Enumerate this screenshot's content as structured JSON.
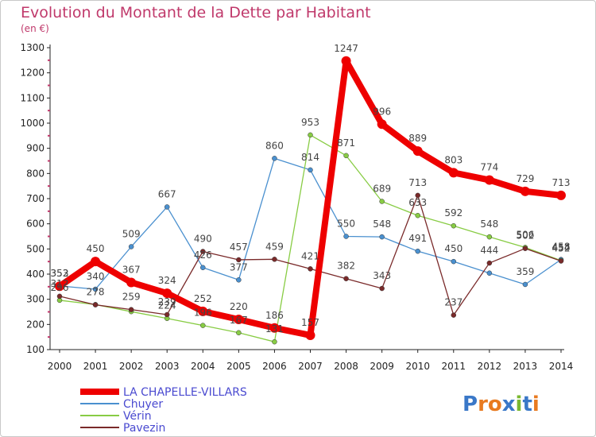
{
  "chart_data": {
    "type": "line",
    "title": "Evolution du Montant de la Dette par Habitant",
    "subtitle": "(en €)",
    "xlabel": "",
    "ylabel": "",
    "ylim": [
      100,
      1300
    ],
    "yticks": [
      100,
      200,
      300,
      400,
      500,
      600,
      700,
      800,
      900,
      1000,
      1100,
      1200,
      1300
    ],
    "x": [
      "2000",
      "2001",
      "2002",
      "2003",
      "2004",
      "2005",
      "2006",
      "2007",
      "2008",
      "2009",
      "2010",
      "2011",
      "2012",
      "2013",
      "2014"
    ],
    "grid": false,
    "legend_position": "bottom-left",
    "series": [
      {
        "name": "LA CHAPELLE-VILLARS",
        "color": "#ee0000",
        "width": 8,
        "marker": 6,
        "values": [
          352,
          450,
          367,
          324,
          252,
          220,
          186,
          157,
          1247,
          996,
          889,
          803,
          774,
          729,
          713
        ]
      },
      {
        "name": "Chuyer",
        "color": "#4a90cf",
        "width": 1.3,
        "marker": 3,
        "values": [
          353,
          340,
          509,
          667,
          426,
          377,
          860,
          814,
          550,
          548,
          491,
          450,
          404,
          359,
          458
        ]
      },
      {
        "name": "Vérin",
        "color": "#88cc44",
        "width": 1.3,
        "marker": 3,
        "values": [
          296,
          279,
          251,
          224,
          196,
          167,
          131,
          953,
          871,
          689,
          633,
          592,
          548,
          506,
          454
        ]
      },
      {
        "name": "Pavezin",
        "color": "#7a2a2a",
        "width": 1.3,
        "marker": 3,
        "values": [
          312,
          278,
          259,
          239,
          490,
          457,
          459,
          421,
          382,
          343,
          713,
          237,
          444,
          502,
          452
        ]
      }
    ],
    "data_labels": [
      {
        "series": 0,
        "i": 0,
        "text": "352",
        "dx": 0,
        "dy": -12
      },
      {
        "series": 0,
        "i": 1,
        "text": "450",
        "dx": 0,
        "dy": -12
      },
      {
        "series": 0,
        "i": 2,
        "text": "367",
        "dx": 0,
        "dy": -12
      },
      {
        "series": 0,
        "i": 3,
        "text": "324",
        "dx": 0,
        "dy": -12
      },
      {
        "series": 0,
        "i": 4,
        "text": "252",
        "dx": 0,
        "dy": -12
      },
      {
        "series": 0,
        "i": 5,
        "text": "220",
        "dx": 0,
        "dy": -12
      },
      {
        "series": 0,
        "i": 6,
        "text": "186",
        "dx": 0,
        "dy": -12
      },
      {
        "series": 0,
        "i": 7,
        "text": "157",
        "dx": 0,
        "dy": -12
      },
      {
        "series": 0,
        "i": 8,
        "text": "1247",
        "dx": 0,
        "dy": -12
      },
      {
        "series": 0,
        "i": 9,
        "text": "996",
        "dx": 0,
        "dy": -12
      },
      {
        "series": 0,
        "i": 10,
        "text": "889",
        "dx": 0,
        "dy": -12
      },
      {
        "series": 0,
        "i": 11,
        "text": "803",
        "dx": 0,
        "dy": -12
      },
      {
        "series": 0,
        "i": 12,
        "text": "774",
        "dx": 0,
        "dy": -12
      },
      {
        "series": 0,
        "i": 13,
        "text": "729",
        "dx": 0,
        "dy": -12
      },
      {
        "series": 0,
        "i": 14,
        "text": "713",
        "dx": 0,
        "dy": -12
      },
      {
        "series": 1,
        "i": 0,
        "text": "353",
        "dx": 0,
        "dy": -12
      },
      {
        "series": 1,
        "i": 1,
        "text": "340",
        "dx": 0,
        "dy": -12
      },
      {
        "series": 1,
        "i": 2,
        "text": "509",
        "dx": 0,
        "dy": -12
      },
      {
        "series": 1,
        "i": 3,
        "text": "667",
        "dx": 0,
        "dy": -12
      },
      {
        "series": 1,
        "i": 4,
        "text": "426",
        "dx": 0,
        "dy": -12
      },
      {
        "series": 1,
        "i": 5,
        "text": "377",
        "dx": 0,
        "dy": -12
      },
      {
        "series": 1,
        "i": 6,
        "text": "860",
        "dx": 0,
        "dy": -12
      },
      {
        "series": 1,
        "i": 7,
        "text": "814",
        "dx": 0,
        "dy": -12
      },
      {
        "series": 1,
        "i": 8,
        "text": "550",
        "dx": 0,
        "dy": -12
      },
      {
        "series": 1,
        "i": 9,
        "text": "548",
        "dx": 0,
        "dy": -12
      },
      {
        "series": 1,
        "i": 10,
        "text": "491",
        "dx": 0,
        "dy": -12
      },
      {
        "series": 1,
        "i": 11,
        "text": "450",
        "dx": 0,
        "dy": -12
      },
      {
        "series": 1,
        "i": 13,
        "text": "359",
        "dx": 0,
        "dy": -12
      },
      {
        "series": 1,
        "i": 14,
        "text": "458",
        "dx": 0,
        "dy": -12
      },
      {
        "series": 2,
        "i": 0,
        "text": "296",
        "dx": 0,
        "dy": -12
      },
      {
        "series": 2,
        "i": 3,
        "text": "224",
        "dx": 0,
        "dy": -12
      },
      {
        "series": 2,
        "i": 4,
        "text": "196",
        "dx": 0,
        "dy": -12
      },
      {
        "series": 2,
        "i": 5,
        "text": "167",
        "dx": 0,
        "dy": -12
      },
      {
        "series": 2,
        "i": 6,
        "text": "131",
        "dx": 0,
        "dy": -12
      },
      {
        "series": 2,
        "i": 7,
        "text": "953",
        "dx": 0,
        "dy": -12
      },
      {
        "series": 2,
        "i": 8,
        "text": "871",
        "dx": 0,
        "dy": -12
      },
      {
        "series": 2,
        "i": 9,
        "text": "689",
        "dx": 0,
        "dy": -12
      },
      {
        "series": 2,
        "i": 10,
        "text": "633",
        "dx": 0,
        "dy": -12
      },
      {
        "series": 2,
        "i": 11,
        "text": "592",
        "dx": 0,
        "dy": -12
      },
      {
        "series": 2,
        "i": 12,
        "text": "548",
        "dx": 0,
        "dy": -12
      },
      {
        "series": 2,
        "i": 13,
        "text": "506",
        "dx": 0,
        "dy": -12
      },
      {
        "series": 2,
        "i": 14,
        "text": "454",
        "dx": 0,
        "dy": -12
      },
      {
        "series": 3,
        "i": 0,
        "text": "312",
        "dx": 0,
        "dy": -12
      },
      {
        "series": 3,
        "i": 1,
        "text": "278",
        "dx": 0,
        "dy": -12
      },
      {
        "series": 3,
        "i": 2,
        "text": "259",
        "dx": 0,
        "dy": -12
      },
      {
        "series": 3,
        "i": 3,
        "text": "239",
        "dx": 0,
        "dy": -12
      },
      {
        "series": 3,
        "i": 4,
        "text": "490",
        "dx": 0,
        "dy": -12
      },
      {
        "series": 3,
        "i": 5,
        "text": "457",
        "dx": 0,
        "dy": -12
      },
      {
        "series": 3,
        "i": 6,
        "text": "459",
        "dx": 0,
        "dy": -12
      },
      {
        "series": 3,
        "i": 7,
        "text": "421",
        "dx": 0,
        "dy": -12
      },
      {
        "series": 3,
        "i": 8,
        "text": "382",
        "dx": 0,
        "dy": -12
      },
      {
        "series": 3,
        "i": 9,
        "text": "343",
        "dx": 0,
        "dy": -12
      },
      {
        "series": 3,
        "i": 10,
        "text": "713",
        "dx": 0,
        "dy": -12
      },
      {
        "series": 3,
        "i": 11,
        "text": "237",
        "dx": 0,
        "dy": -12
      },
      {
        "series": 3,
        "i": 12,
        "text": "444",
        "dx": 0,
        "dy": -12
      },
      {
        "series": 3,
        "i": 13,
        "text": "502",
        "dx": 0,
        "dy": -12
      },
      {
        "series": 3,
        "i": 14,
        "text": "452",
        "dx": 0,
        "dy": -12
      }
    ]
  },
  "logo": {
    "text": "Proxiti",
    "letters": [
      {
        "ch": "P",
        "color": "#3a78c8"
      },
      {
        "ch": "r",
        "color": "#e87a20"
      },
      {
        "ch": "o",
        "color": "#e87a20"
      },
      {
        "ch": "x",
        "color": "#3a78c8"
      },
      {
        "ch": "i",
        "color": "#7ab830"
      },
      {
        "ch": "t",
        "color": "#3a78c8"
      },
      {
        "ch": "i",
        "color": "#e87a20"
      }
    ]
  }
}
